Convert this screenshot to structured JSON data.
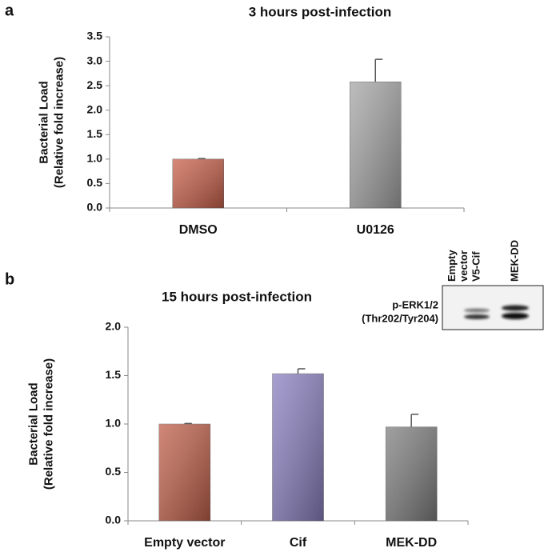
{
  "chart_data": [
    {
      "type": "bar",
      "panel": "a",
      "title": "3 hours post-infection",
      "ylabel": [
        "Bacterial Load",
        "(Relative fold increase)"
      ],
      "categories": [
        "DMSO",
        "U0126"
      ],
      "values": [
        1.0,
        2.58
      ],
      "errors": [
        0.01,
        0.46
      ],
      "colors": [
        "#c8604a",
        "#a6a6a6"
      ],
      "ylim": [
        0,
        3.5
      ],
      "yticks": [
        {
          "value": 0,
          "label": "0.0"
        },
        0.5,
        {
          "value": 1,
          "label": "1.0"
        },
        1.5,
        {
          "value": 2,
          "label": "2.0"
        },
        2.5,
        {
          "value": 3,
          "label": "3.0"
        },
        3.5
      ]
    },
    {
      "type": "bar",
      "panel": "b",
      "title": "15 hours post-infection",
      "ylabel": [
        "Bacterial Load",
        "(Relative fold increase)"
      ],
      "categories": [
        "Empty vector",
        "Cif",
        "MEK-DD"
      ],
      "values": [
        1.0,
        1.52,
        0.97
      ],
      "errors": [
        0.005,
        0.05,
        0.13
      ],
      "colors": [
        "#c0604a",
        "#8a80c0",
        "#7f7f7f"
      ],
      "ylim": [
        0,
        2
      ],
      "yticks": [
        {
          "value": 0,
          "label": "0.0"
        },
        0.5,
        {
          "value": 1,
          "label": "1.0"
        },
        1.5,
        {
          "value": 2,
          "label": "2.0"
        }
      ],
      "inset": {
        "lanes": [
          [
            "Empty",
            "vector"
          ],
          [
            "V5-Cif"
          ],
          [
            "MEK-DD"
          ]
        ],
        "labels": [
          "p-ERK1/2",
          "(Thr202/Tyr204)"
        ]
      }
    }
  ]
}
